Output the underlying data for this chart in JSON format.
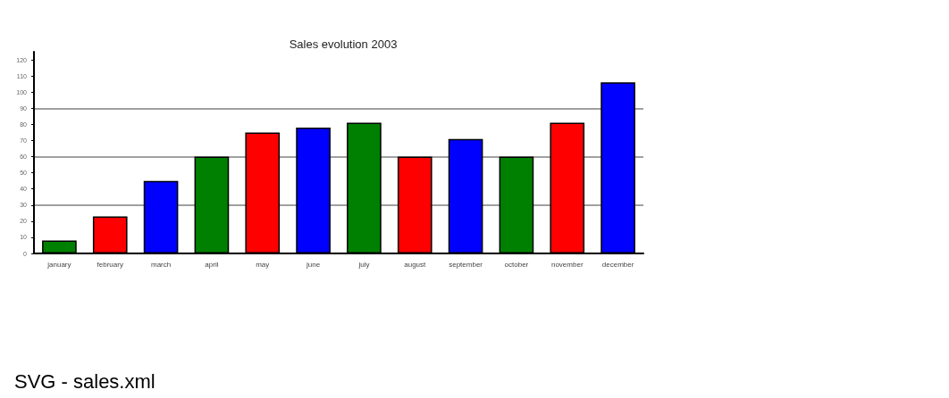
{
  "chart_data": {
    "type": "bar",
    "title": "Sales evolution 2003",
    "categories": [
      "january",
      "february",
      "march",
      "april",
      "may",
      "june",
      "july",
      "august",
      "september",
      "october",
      "november",
      "december"
    ],
    "values": [
      8,
      23,
      45,
      60,
      75,
      78,
      81,
      60,
      71,
      60,
      81,
      106
    ],
    "colors": [
      "#008000",
      "#ff0000",
      "#0000ff",
      "#008000",
      "#ff0000",
      "#0000ff",
      "#008000",
      "#ff0000",
      "#0000ff",
      "#008000",
      "#ff0000",
      "#0000ff"
    ],
    "ylim": [
      0,
      125
    ],
    "yticks": [
      0,
      10,
      20,
      30,
      40,
      50,
      60,
      70,
      80,
      90,
      100,
      110,
      120
    ],
    "ref_lines": [
      {
        "axis": "y",
        "value": 30,
        "color": "#808080"
      },
      {
        "axis": "y",
        "value": 60,
        "color": "#808080"
      },
      {
        "axis": "y",
        "value": 90,
        "color": "#808080"
      }
    ],
    "annotations": [
      "SVG - sales.xml"
    ]
  }
}
